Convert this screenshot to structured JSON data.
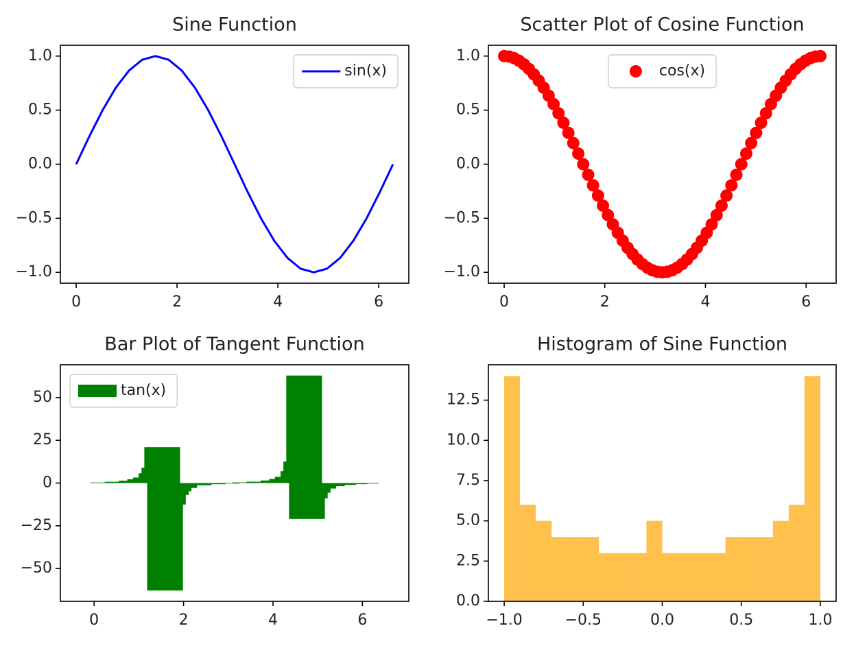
{
  "chart_data": [
    {
      "type": "line",
      "title": "Sine Function",
      "x": [
        0,
        0.262,
        0.524,
        0.785,
        1.047,
        1.309,
        1.571,
        1.833,
        2.094,
        2.356,
        2.618,
        2.88,
        3.142,
        3.403,
        3.665,
        3.927,
        4.189,
        4.451,
        4.712,
        4.974,
        5.236,
        5.498,
        5.76,
        6.021,
        6.283
      ],
      "series": [
        {
          "name": "sin(x)",
          "color": "blue",
          "values": [
            0,
            0.259,
            0.5,
            0.707,
            0.866,
            0.966,
            1,
            0.966,
            0.866,
            0.707,
            0.5,
            0.259,
            0,
            -0.259,
            -0.5,
            -0.707,
            -0.866,
            -0.966,
            -1,
            -0.966,
            -0.866,
            -0.707,
            -0.5,
            -0.259,
            0
          ]
        }
      ],
      "xlim": [
        -0.314,
        6.597
      ],
      "ylim": [
        -1.1,
        1.1
      ],
      "xticks": [
        0,
        2,
        4,
        6
      ],
      "yticks": [
        {
          "value": -1,
          "label": "−1.0"
        },
        {
          "value": -0.5,
          "label": "−0.5"
        },
        {
          "value": 0,
          "label": "0.0"
        },
        0.5,
        {
          "value": 1,
          "label": "1.0"
        }
      ],
      "legend": "upper right"
    },
    {
      "type": "scatter",
      "title": "Scatter Plot of Cosine Function",
      "x": [
        0,
        0.098,
        0.196,
        0.295,
        0.393,
        0.491,
        0.589,
        0.687,
        0.785,
        0.884,
        0.982,
        1.08,
        1.178,
        1.276,
        1.374,
        1.473,
        1.571,
        1.669,
        1.767,
        1.865,
        1.963,
        2.062,
        2.16,
        2.258,
        2.356,
        2.454,
        2.553,
        2.651,
        2.749,
        2.847,
        2.945,
        3.043,
        3.142,
        3.24,
        3.338,
        3.436,
        3.534,
        3.632,
        3.731,
        3.829,
        3.927,
        4.025,
        4.123,
        4.222,
        4.32,
        4.418,
        4.516,
        4.614,
        4.712,
        4.811,
        4.909,
        5.007,
        5.105,
        5.203,
        5.301,
        5.4,
        5.498,
        5.596,
        5.694,
        5.792,
        5.89,
        5.989,
        6.087,
        6.185,
        6.283
      ],
      "series": [
        {
          "name": "cos(x)",
          "color": "red",
          "values": [
            1,
            0.995,
            0.981,
            0.957,
            0.924,
            0.882,
            0.831,
            0.773,
            0.707,
            0.634,
            0.556,
            0.471,
            0.383,
            0.29,
            0.195,
            0.098,
            0,
            -0.098,
            -0.195,
            -0.29,
            -0.383,
            -0.471,
            -0.556,
            -0.634,
            -0.707,
            -0.773,
            -0.831,
            -0.882,
            -0.924,
            -0.957,
            -0.981,
            -0.995,
            -1,
            -0.995,
            -0.981,
            -0.957,
            -0.924,
            -0.882,
            -0.831,
            -0.773,
            -0.707,
            -0.634,
            -0.556,
            -0.471,
            -0.383,
            -0.29,
            -0.195,
            -0.098,
            0,
            0.098,
            0.195,
            0.29,
            0.383,
            0.471,
            0.556,
            0.634,
            0.707,
            0.773,
            0.831,
            0.882,
            0.924,
            0.957,
            0.981,
            0.995,
            1
          ]
        }
      ],
      "xlim": [
        -0.314,
        6.597
      ],
      "ylim": [
        -1.1,
        1.1
      ],
      "xticks": [
        0,
        2,
        4,
        6
      ],
      "yticks": [
        {
          "value": -1,
          "label": "−1.0"
        },
        {
          "value": -0.5,
          "label": "−0.5"
        },
        {
          "value": 0,
          "label": "0.0"
        },
        0.5,
        {
          "value": 1,
          "label": "1.0"
        }
      ],
      "legend": "upper center"
    },
    {
      "type": "bar",
      "title": "Bar Plot of Tangent Function",
      "x": [
        0,
        0.317,
        0.635,
        0.952,
        1.142,
        1.269,
        1.396,
        1.46,
        1.523,
        1.587,
        1.65,
        1.714,
        1.777,
        1.904,
        2.221,
        2.539,
        2.856,
        3.173,
        3.491,
        3.808,
        4.125,
        4.316,
        4.443,
        4.57,
        4.633,
        4.697,
        4.76,
        4.823,
        4.887,
        5.014,
        5.204,
        5.458,
        5.712,
        5.966,
        6.283
      ],
      "series": [
        {
          "name": "tan(x)",
          "color": "green",
          "values": [
            0,
            0.329,
            0.737,
            1.398,
            2.19,
            3.22,
            5.67,
            8.96,
            21.0,
            -62.9,
            -12.57,
            -6.95,
            -4.78,
            -2.89,
            -1.313,
            -0.691,
            -0.294,
            0.032,
            0.364,
            0.787,
            1.501,
            2.39,
            3.62,
            6.95,
            12.57,
            62.9,
            -21.0,
            -8.96,
            -5.67,
            -3.22,
            -1.865,
            -1.083,
            -0.643,
            -0.329,
            0
          ]
        }
      ],
      "bar_width": 0.8,
      "xlim": [
        -0.754,
        7.037
      ],
      "ylim": [
        -69.2,
        69.2
      ],
      "xticks": [
        0,
        2,
        4,
        6
      ],
      "yticks": [
        {
          "value": -50,
          "label": "−50"
        },
        {
          "value": -25,
          "label": "−25"
        },
        0,
        25,
        50
      ],
      "legend": "upper left"
    },
    {
      "type": "histogram",
      "title": "Histogram of Sine Function",
      "bins": [
        -1,
        -0.9,
        -0.8,
        -0.7,
        -0.6,
        -0.5,
        -0.4,
        -0.3,
        -0.2,
        -0.1,
        0,
        0.1,
        0.2,
        0.3,
        0.4,
        0.5,
        0.6,
        0.7,
        0.8,
        0.9,
        1
      ],
      "values": [
        14,
        6,
        5,
        4,
        4,
        4,
        3,
        3,
        3,
        5,
        3,
        3,
        3,
        3,
        4,
        4,
        4,
        5,
        6,
        14
      ],
      "color": "orange",
      "alpha": 0.7,
      "xlim": [
        -1.1,
        1.1
      ],
      "ylim": [
        0,
        14.7
      ],
      "xticks": [
        {
          "value": -1,
          "label": "−1.0"
        },
        {
          "value": -0.5,
          "label": "−0.5"
        },
        {
          "value": 0,
          "label": "0.0"
        },
        0.5,
        {
          "value": 1,
          "label": "1.0"
        }
      ],
      "yticks": [
        {
          "value": 0,
          "label": "0.0"
        },
        2.5,
        {
          "value": 5,
          "label": "5.0"
        },
        7.5,
        {
          "value": 10,
          "label": "10.0"
        },
        12.5
      ]
    }
  ]
}
